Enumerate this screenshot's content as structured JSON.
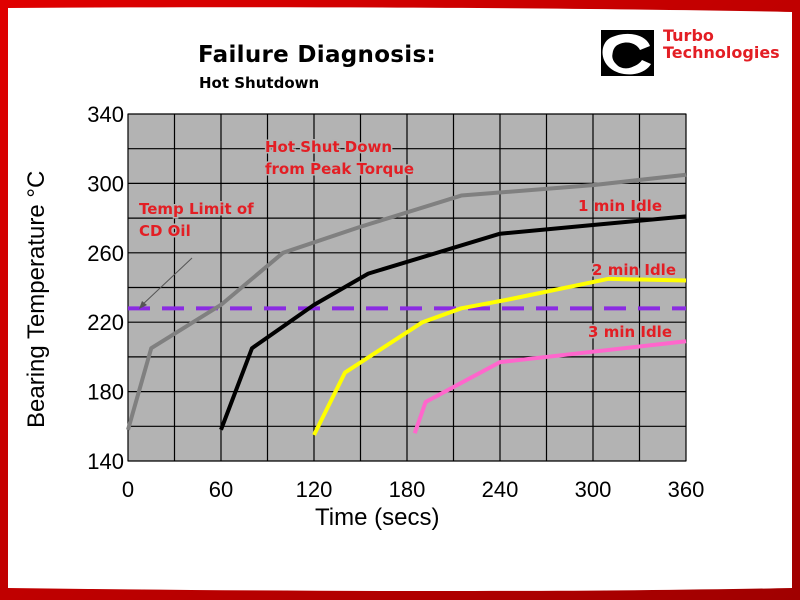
{
  "header": {
    "title": "Failure Diagnosis:",
    "subtitle": "Hot Shutdown"
  },
  "logo": {
    "mark_text": "Cummins",
    "brand_line1": "Turbo",
    "brand_line2": "Technologies",
    "brand_color": "#e31e24"
  },
  "colors": {
    "accent_red": "#cc0000",
    "plot_bg": "#b3b3b3",
    "grid": "#000000",
    "annotation": "#e31e24"
  },
  "chart_data": {
    "type": "line",
    "xlabel": "Time (secs)",
    "ylabel": "Bearing Temperature  °C",
    "xlim": [
      0,
      360
    ],
    "ylim": [
      140,
      340
    ],
    "x_ticks": [
      "0",
      "60",
      "120",
      "180",
      "240",
      "300",
      "360"
    ],
    "y_ticks": [
      "140",
      "180",
      "220",
      "260",
      "300",
      "340"
    ],
    "grid": true,
    "series": [
      {
        "name": "Hot Shut Down from Peak Torque",
        "color": "#808080",
        "points": [
          [
            0,
            158
          ],
          [
            15,
            205
          ],
          [
            60,
            230
          ],
          [
            100,
            260
          ],
          [
            150,
            275
          ],
          [
            215,
            293
          ],
          [
            300,
            299
          ],
          [
            360,
            305
          ]
        ]
      },
      {
        "name": "1 min Idle",
        "color": "#000000",
        "points": [
          [
            60,
            158
          ],
          [
            80,
            205
          ],
          [
            120,
            230
          ],
          [
            155,
            248
          ],
          [
            240,
            271
          ],
          [
            300,
            276
          ],
          [
            360,
            281
          ]
        ]
      },
      {
        "name": "2 min Idle",
        "color": "#ffff00",
        "points": [
          [
            120,
            155
          ],
          [
            140,
            191
          ],
          [
            190,
            220
          ],
          [
            215,
            228
          ],
          [
            245,
            233
          ],
          [
            310,
            245
          ],
          [
            360,
            244
          ]
        ]
      },
      {
        "name": "3 min Idle",
        "color": "#ff66cc",
        "points": [
          [
            185,
            156
          ],
          [
            192,
            174
          ],
          [
            240,
            197
          ],
          [
            300,
            203
          ],
          [
            360,
            209
          ]
        ]
      }
    ],
    "reference_line": {
      "name": "Temp Limit of CD Oil",
      "y": 228,
      "color": "#8a2be2",
      "style": "dashed"
    },
    "annotations": [
      {
        "id": "hot-shutdown",
        "lines": [
          "Hot Shut Down",
          "from Peak Torque"
        ]
      },
      {
        "id": "one-min",
        "lines": [
          "1 min Idle"
        ]
      },
      {
        "id": "two-min",
        "lines": [
          "2 min Idle"
        ]
      },
      {
        "id": "three-min",
        "lines": [
          "3 min Idle"
        ]
      },
      {
        "id": "temp-limit",
        "lines": [
          "Temp Limit  of",
          "CD Oil"
        ]
      }
    ]
  }
}
